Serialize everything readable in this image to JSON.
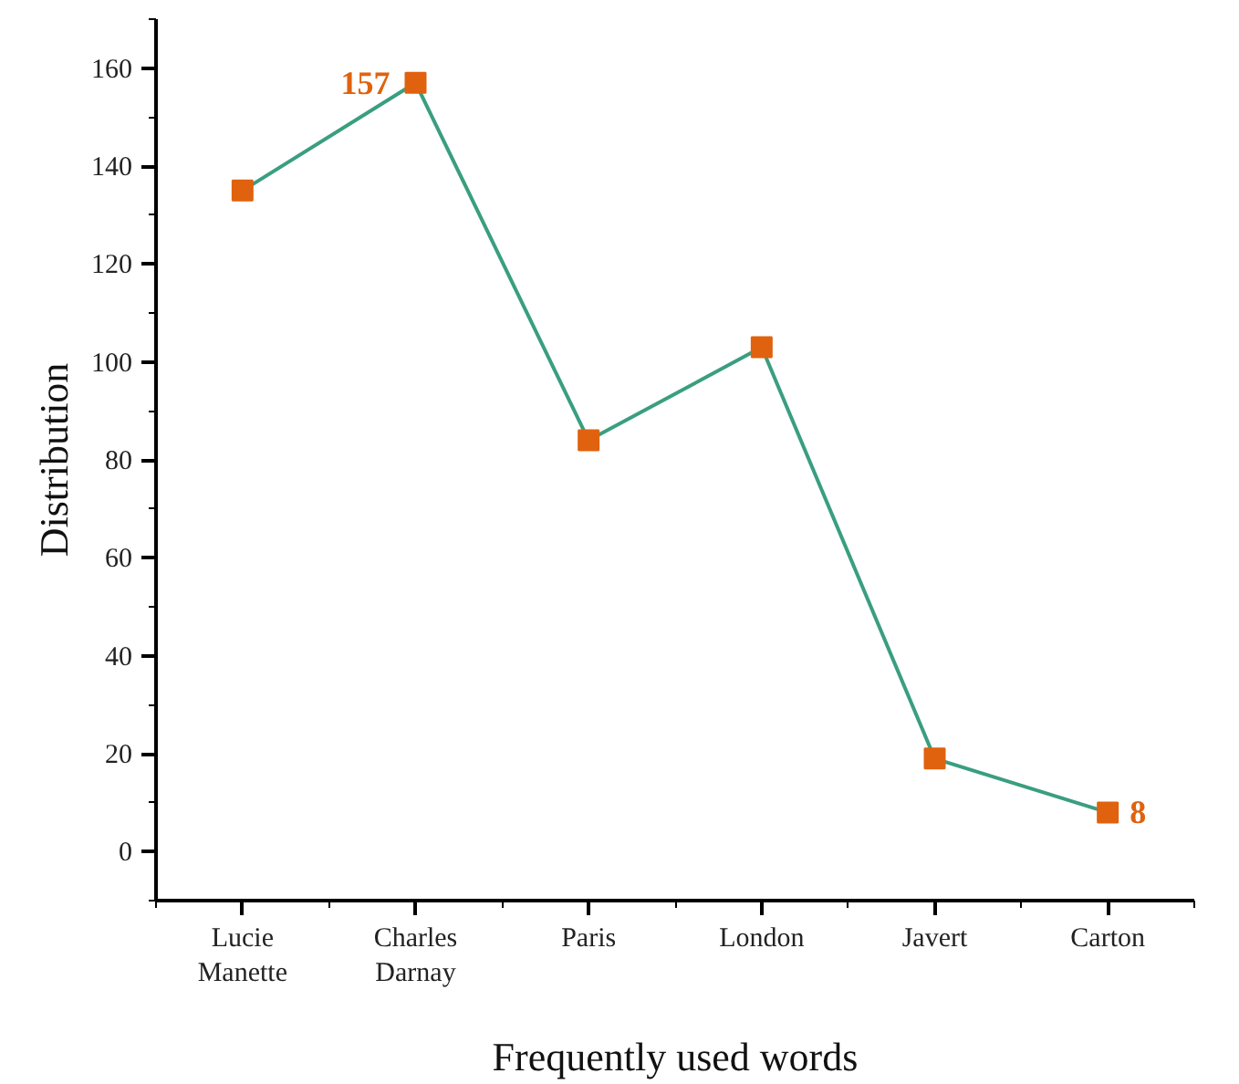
{
  "chart_data": {
    "type": "line",
    "xlabel": "Frequently used words",
    "ylabel": "Distribution",
    "categories": [
      "Lucie\nManette",
      "Charles\nDarnay",
      "Paris",
      "London",
      "Javert",
      "Carton"
    ],
    "series": [
      {
        "color": "#3a9e80",
        "colors": [
          "#e0620e",
          "#e0620e",
          "#e0620e",
          "#e0620e",
          "#e0620e",
          "#e0620e"
        ],
        "values": [
          135,
          157,
          84,
          103,
          19,
          8
        ],
        "value_labels": [
          null,
          "157",
          null,
          null,
          null,
          "8"
        ]
      }
    ],
    "ylim": [
      -10,
      170
    ],
    "yticks": [
      0,
      20,
      40,
      60,
      80,
      100,
      120,
      140,
      160
    ],
    "marker": "square",
    "line_style": "solid",
    "grid": false
  }
}
